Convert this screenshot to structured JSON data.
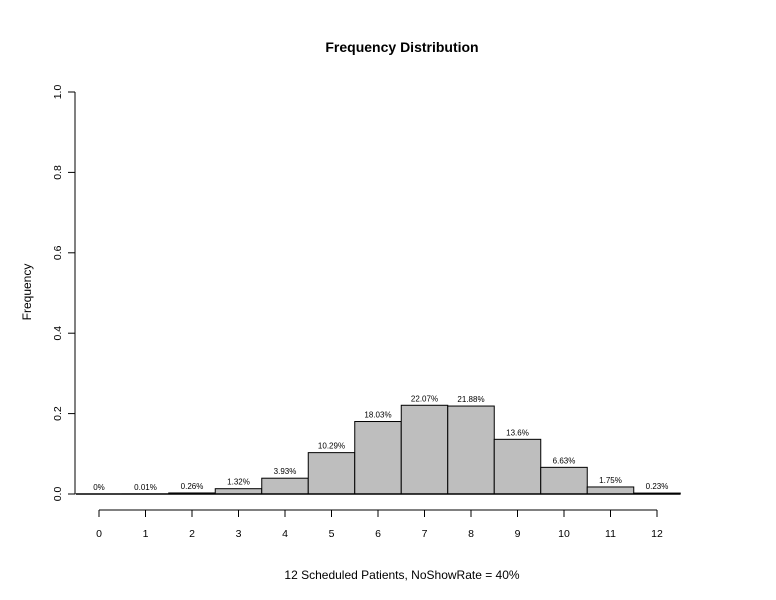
{
  "chart_data": {
    "type": "bar",
    "title": "Frequency Distribution",
    "xlabel": "12 Scheduled Patients,  NoShowRate = 40%",
    "ylabel": "Frequency",
    "categories": [
      "0",
      "1",
      "2",
      "3",
      "4",
      "5",
      "6",
      "7",
      "8",
      "9",
      "10",
      "11",
      "12"
    ],
    "values": [
      0.0,
      0.0001,
      0.0026,
      0.0132,
      0.0393,
      0.1029,
      0.1803,
      0.2207,
      0.2188,
      0.136,
      0.0663,
      0.0175,
      0.0023
    ],
    "labels": [
      "0%",
      "0.01%",
      "0.26%",
      "1.32%",
      "3.93%",
      "10.29%",
      "18.03%",
      "22.07%",
      "21.88%",
      "13.6%",
      "6.63%",
      "1.75%",
      "0.23%"
    ],
    "ylim": [
      0,
      1
    ],
    "yticks": [
      "0.0",
      "0.2",
      "0.4",
      "0.6",
      "0.8",
      "1.0"
    ],
    "grid": false,
    "bar_color": "#bebebe",
    "edge_color": "#000000"
  }
}
